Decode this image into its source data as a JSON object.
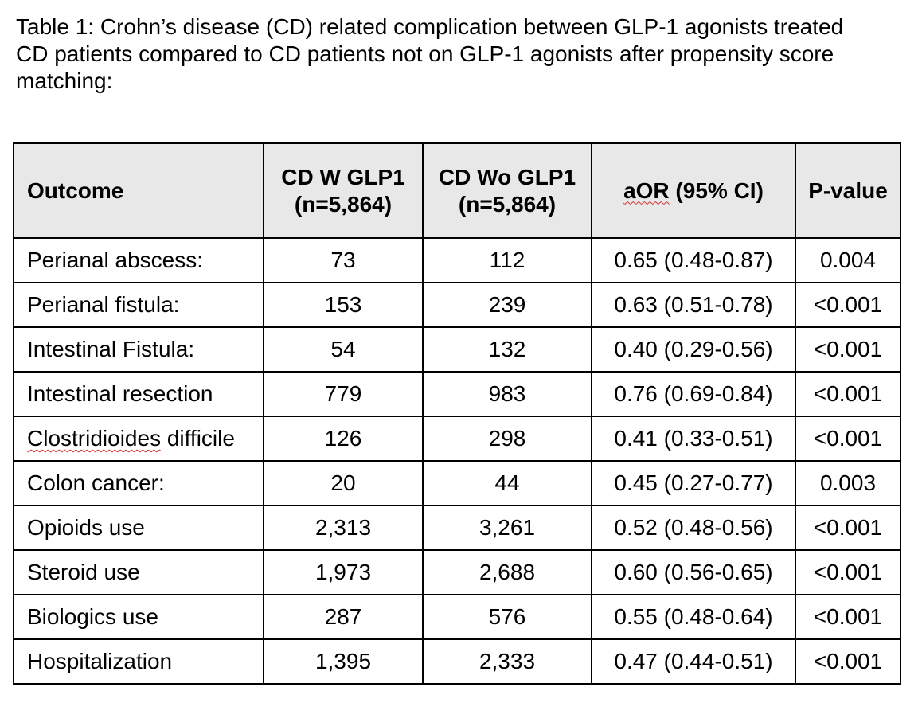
{
  "caption": {
    "line1": "Table 1:  Crohn’s disease (CD) related complication between GLP-1 agonists treated",
    "line2": "CD patients compared to CD patients not on GLP-1 agonists after propensity score",
    "line3": "matching:"
  },
  "table": {
    "headers": {
      "outcome": "Outcome",
      "with_glp1_line1": "CD W GLP1",
      "with_glp1_line2": "(n=5,864)",
      "without_glp1_line1": "CD Wo GLP1",
      "without_glp1_line2": "(n=5,864)",
      "aor_abbrev": "aOR",
      "aor_rest": " (95% CI)",
      "pvalue": "P-value"
    },
    "rows": [
      {
        "outcome": "Perianal abscess:",
        "with_glp1": "73",
        "without_glp1": "112",
        "aor": "0.65 (0.48-0.87)",
        "p": "0.004"
      },
      {
        "outcome": "Perianal fistula:",
        "with_glp1": "153",
        "without_glp1": "239",
        "aor": "0.63 (0.51-0.78)",
        "p": "<0.001"
      },
      {
        "outcome": "Intestinal Fistula:",
        "with_glp1": "54",
        "without_glp1": "132",
        "aor": "0.40 (0.29-0.56)",
        "p": "<0.001"
      },
      {
        "outcome": "Intestinal resection",
        "with_glp1": "779",
        "without_glp1": "983",
        "aor": "0.76 (0.69-0.84)",
        "p": "<0.001"
      },
      {
        "outcome_part1": "Clostridioides",
        "outcome_part2": " difficile",
        "with_glp1": "126",
        "without_glp1": "298",
        "aor": "0.41 (0.33-0.51)",
        "p": "<0.001"
      },
      {
        "outcome": "Colon cancer:",
        "with_glp1": "20",
        "without_glp1": "44",
        "aor": "0.45 (0.27-0.77)",
        "p": "0.003"
      },
      {
        "outcome": "Opioids use",
        "with_glp1": "2,313",
        "without_glp1": "3,261",
        "aor": "0.52 (0.48-0.56)",
        "p": "<0.001"
      },
      {
        "outcome": "Steroid use",
        "with_glp1": "1,973",
        "without_glp1": "2,688",
        "aor": "0.60 (0.56-0.65)",
        "p": "<0.001"
      },
      {
        "outcome": "Biologics use",
        "with_glp1": "287",
        "without_glp1": "576",
        "aor": "0.55 (0.48-0.64)",
        "p": "<0.001"
      },
      {
        "outcome": "Hospitalization",
        "with_glp1": "1,395",
        "without_glp1": "2,333",
        "aor": "0.47 (0.44-0.51)",
        "p": "<0.001"
      }
    ]
  },
  "colors": {
    "header_background": "#e8e8e8",
    "border": "#000000",
    "spellcheck_underline": "#d03030"
  }
}
